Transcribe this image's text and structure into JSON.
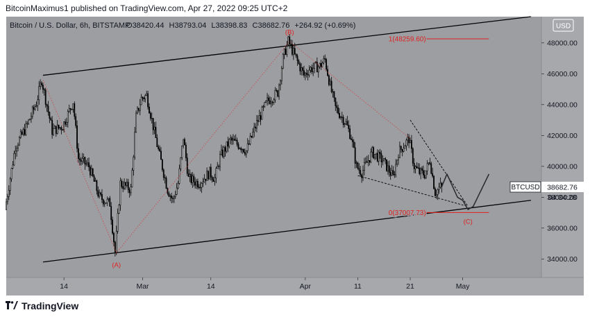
{
  "header": {
    "text": "BitcoinMaximus1 published on TradingView.com, Apr 27, 2022 09:25 UTC+2"
  },
  "symbol_info": {
    "name": "Bitcoin / U.S. Dollar, 6h, BITSTAMP",
    "open_label": "O",
    "open": "38420.44",
    "high_label": "H",
    "high": "38793.04",
    "low_label": "L",
    "low": "38398.83",
    "close_label": "C",
    "close": "38682.76",
    "change": "+264.92 (+0.69%)"
  },
  "currency_button": "USD",
  "price_tag": {
    "symbol": "BTCUSD",
    "price": "38682.76",
    "countdown": "04:34:28"
  },
  "footer": {
    "brand": "TradingView",
    "logo_icon": "tradingview-logo-icon"
  },
  "colors": {
    "plot_bg": "#9d9ea2",
    "axis_bg": "#a7a8ac",
    "red": "#e0201f",
    "candle": "#000000"
  },
  "chart_data": {
    "type": "candlestick",
    "y_axis": {
      "ticks": [
        34000,
        36000,
        38000,
        40000,
        42000,
        44000,
        46000,
        48000
      ],
      "tick_labels": [
        "34000.00",
        "36000.00",
        "38000.00",
        "40000.00",
        "42000.00",
        "44000.00",
        "46000.00",
        "48000.00"
      ],
      "range": [
        32800,
        49700
      ],
      "position": "right"
    },
    "x_axis": {
      "tick_labels": [
        "14",
        "Mar",
        "14",
        "Apr",
        "11",
        "21",
        "May"
      ],
      "tick_dates": [
        "2022-02-14",
        "2022-03-01",
        "2022-03-14",
        "2022-04-01",
        "2022-04-11",
        "2022-04-21",
        "2022-05-01"
      ],
      "range": [
        "2022-02-03",
        "2022-05-16"
      ]
    },
    "price_path": [
      [
        "2022-02-03",
        37200
      ],
      [
        "2022-02-05",
        41300
      ],
      [
        "2022-02-07",
        42500
      ],
      [
        "2022-02-09",
        44100
      ],
      [
        "2022-02-10",
        45600
      ],
      [
        "2022-02-12",
        42300
      ],
      [
        "2022-02-14",
        42600
      ],
      [
        "2022-02-16",
        44200
      ],
      [
        "2022-02-17",
        40500
      ],
      [
        "2022-02-19",
        40000
      ],
      [
        "2022-02-21",
        38000
      ],
      [
        "2022-02-23",
        37600
      ],
      [
        "2022-02-24",
        34400
      ],
      [
        "2022-02-25",
        38900
      ],
      [
        "2022-02-27",
        38500
      ],
      [
        "2022-02-28",
        43200
      ],
      [
        "2022-03-01",
        44400
      ],
      [
        "2022-03-02",
        44600
      ],
      [
        "2022-03-04",
        41400
      ],
      [
        "2022-03-06",
        38500
      ],
      [
        "2022-03-07",
        37800
      ],
      [
        "2022-03-08",
        38900
      ],
      [
        "2022-03-09",
        41900
      ],
      [
        "2022-03-10",
        39200
      ],
      [
        "2022-03-12",
        38900
      ],
      [
        "2022-03-14",
        39600
      ],
      [
        "2022-03-15",
        39200
      ],
      [
        "2022-03-16",
        40600
      ],
      [
        "2022-03-18",
        41700
      ],
      [
        "2022-03-20",
        41300
      ],
      [
        "2022-03-21",
        41000
      ],
      [
        "2022-03-23",
        42800
      ],
      [
        "2022-03-25",
        44200
      ],
      [
        "2022-03-27",
        44800
      ],
      [
        "2022-03-28",
        47000
      ],
      [
        "2022-03-29",
        48100
      ],
      [
        "2022-03-31",
        46600
      ],
      [
        "2022-04-01",
        45900
      ],
      [
        "2022-04-02",
        46300
      ],
      [
        "2022-04-04",
        46500
      ],
      [
        "2022-04-05",
        46900
      ],
      [
        "2022-04-06",
        45200
      ],
      [
        "2022-04-07",
        43800
      ],
      [
        "2022-04-09",
        42800
      ],
      [
        "2022-04-10",
        41900
      ],
      [
        "2022-04-11",
        40000
      ],
      [
        "2022-04-12",
        39600
      ],
      [
        "2022-04-14",
        40900
      ],
      [
        "2022-04-16",
        40400
      ],
      [
        "2022-04-18",
        39300
      ],
      [
        "2022-04-19",
        40900
      ],
      [
        "2022-04-21",
        41800
      ],
      [
        "2022-04-22",
        40000
      ],
      [
        "2022-04-23",
        39600
      ],
      [
        "2022-04-24",
        39500
      ],
      [
        "2022-04-25",
        40400
      ],
      [
        "2022-04-26",
        38300
      ],
      [
        "2022-04-27",
        38680
      ]
    ],
    "annotations": [
      {
        "label": "(A)",
        "date": "2022-02-24",
        "price": 34200,
        "position": "below"
      },
      {
        "label": "(B)",
        "date": "2022-03-29",
        "price": 48200,
        "position": "above"
      },
      {
        "label": "(C)",
        "date": "2022-05-02",
        "price": 37000,
        "position": "below"
      },
      {
        "label": "1(48259.60)",
        "date": "2022-04-24",
        "price": 48260,
        "line_to": "2022-05-06"
      },
      {
        "label": "0(37007.73)",
        "date": "2022-04-24",
        "price": 37008,
        "line_to": "2022-05-06"
      }
    ],
    "channel": {
      "upper": [
        [
          "2022-02-10",
          45900
        ],
        [
          "2022-05-14",
          49700
        ]
      ],
      "lower": [
        [
          "2022-02-10",
          33800
        ],
        [
          "2022-05-14",
          37800
        ]
      ]
    },
    "wedge": {
      "upper": [
        [
          "2022-04-21",
          43000
        ],
        [
          "2022-05-02",
          37400
        ]
      ],
      "lower": [
        [
          "2022-04-11",
          39400
        ],
        [
          "2022-05-02",
          37400
        ]
      ]
    },
    "projection": [
      [
        "2022-04-27",
        38680
      ],
      [
        "2022-04-28",
        39500
      ],
      [
        "2022-04-30",
        38000
      ],
      [
        "2022-05-01",
        37800
      ],
      [
        "2022-05-02",
        37200
      ],
      [
        "2022-05-03",
        37400
      ],
      [
        "2022-05-04",
        38100
      ],
      [
        "2022-05-06",
        39500
      ]
    ]
  }
}
